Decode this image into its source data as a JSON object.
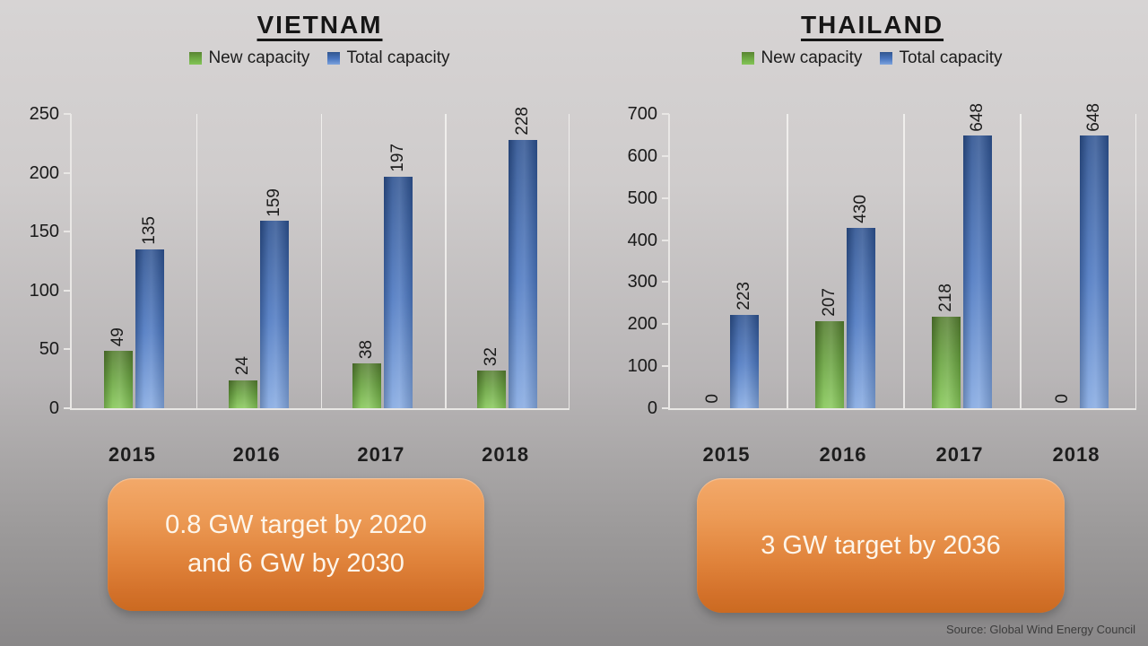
{
  "source_note": "Source: Global Wind Energy Council",
  "colors": {
    "new_capacity_green": "#6fae46",
    "total_capacity_blue": "#4472c4",
    "callout_orange_top": "#f3a96a",
    "callout_orange_bottom": "#cb6a21",
    "background_top_gray": "#d7d4d4",
    "background_bottom_gray": "#898788",
    "axis_line": "#e9e7e5",
    "text": "#1b1b1b"
  },
  "chart_data": [
    {
      "type": "bar",
      "title": "VIETNAM",
      "categories": [
        "2015",
        "2016",
        "2017",
        "2018"
      ],
      "series": [
        {
          "name": "New capacity",
          "color": "#6fae46",
          "values": [
            49,
            24,
            38,
            32
          ]
        },
        {
          "name": "Total capacity",
          "color": "#4472c4",
          "values": [
            135,
            159,
            197,
            228
          ]
        }
      ],
      "ylim": [
        0,
        250
      ],
      "ytick_step": 50,
      "legend_position": "top",
      "grid": "vertical category separators only",
      "data_labels": "rotated 90deg above each bar",
      "callout_lines": [
        "0.8 GW target by 2020",
        "and 6 GW by 2030"
      ]
    },
    {
      "type": "bar",
      "title": "THAILAND",
      "categories": [
        "2015",
        "2016",
        "2017",
        "2018"
      ],
      "series": [
        {
          "name": "New capacity",
          "color": "#6fae46",
          "values": [
            0,
            207,
            218,
            0
          ]
        },
        {
          "name": "Total capacity",
          "color": "#4472c4",
          "values": [
            223,
            430,
            648,
            648
          ]
        }
      ],
      "ylim": [
        0,
        700
      ],
      "ytick_step": 100,
      "legend_position": "top",
      "grid": "vertical category separators only",
      "data_labels": "rotated 90deg above each bar",
      "callout_lines": [
        "3 GW target by 2036"
      ]
    }
  ]
}
